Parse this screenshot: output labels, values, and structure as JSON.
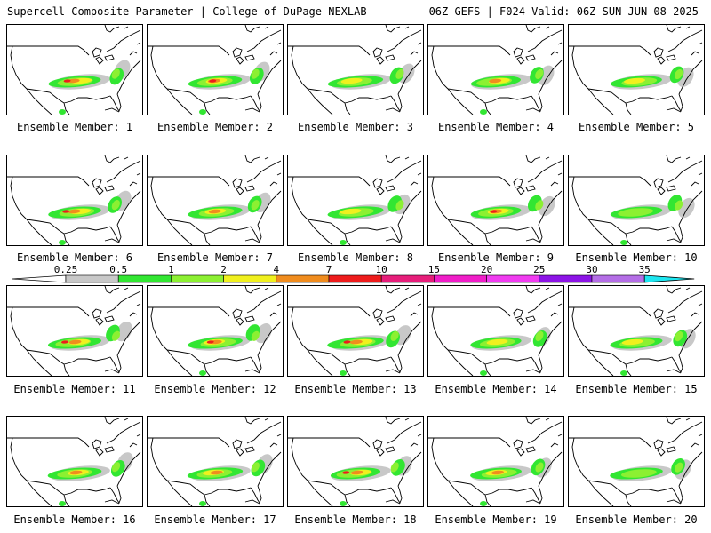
{
  "header": {
    "title_left": "Supercell Composite Parameter | College of DuPage NEXLAB",
    "title_right": "06Z GEFS | F024 Valid: 06Z SUN JUN 08 2025"
  },
  "colorbar": {
    "ticks": [
      "0.25",
      "0.5",
      "1",
      "2",
      "4",
      "7",
      "10",
      "15",
      "20",
      "25",
      "30",
      "35"
    ],
    "colors": [
      "#c8c8c8",
      "#32e632",
      "#8cf032",
      "#f0f01e",
      "#f08c1e",
      "#ee1c1c",
      "#e61e7a",
      "#f01ec8",
      "#f03cf0",
      "#8c14e6",
      "#b46ee6",
      "#1ee6f0"
    ]
  },
  "members": [
    {
      "label": "Ensemble Member: 1",
      "intensity": 0.9
    },
    {
      "label": "Ensemble Member: 2",
      "intensity": 0.95
    },
    {
      "label": "Ensemble Member: 3",
      "intensity": 0.6
    },
    {
      "label": "Ensemble Member: 4",
      "intensity": 0.7
    },
    {
      "label": "Ensemble Member: 5",
      "intensity": 0.6
    },
    {
      "label": "Ensemble Member: 6",
      "intensity": 0.9
    },
    {
      "label": "Ensemble Member: 7",
      "intensity": 0.8
    },
    {
      "label": "Ensemble Member: 8",
      "intensity": 0.6
    },
    {
      "label": "Ensemble Member: 9",
      "intensity": 0.9
    },
    {
      "label": "Ensemble Member: 10",
      "intensity": 0.5
    },
    {
      "label": "Ensemble Member: 11",
      "intensity": 0.9
    },
    {
      "label": "Ensemble Member: 12",
      "intensity": 0.9
    },
    {
      "label": "Ensemble Member: 13",
      "intensity": 0.95
    },
    {
      "label": "Ensemble Member: 14",
      "intensity": 0.6
    },
    {
      "label": "Ensemble Member: 15",
      "intensity": 0.6
    },
    {
      "label": "Ensemble Member: 16",
      "intensity": 0.7
    },
    {
      "label": "Ensemble Member: 17",
      "intensity": 0.7
    },
    {
      "label": "Ensemble Member: 18",
      "intensity": 0.95
    },
    {
      "label": "Ensemble Member: 19",
      "intensity": 0.7
    },
    {
      "label": "Ensemble Member: 20",
      "intensity": 0.5
    }
  ]
}
